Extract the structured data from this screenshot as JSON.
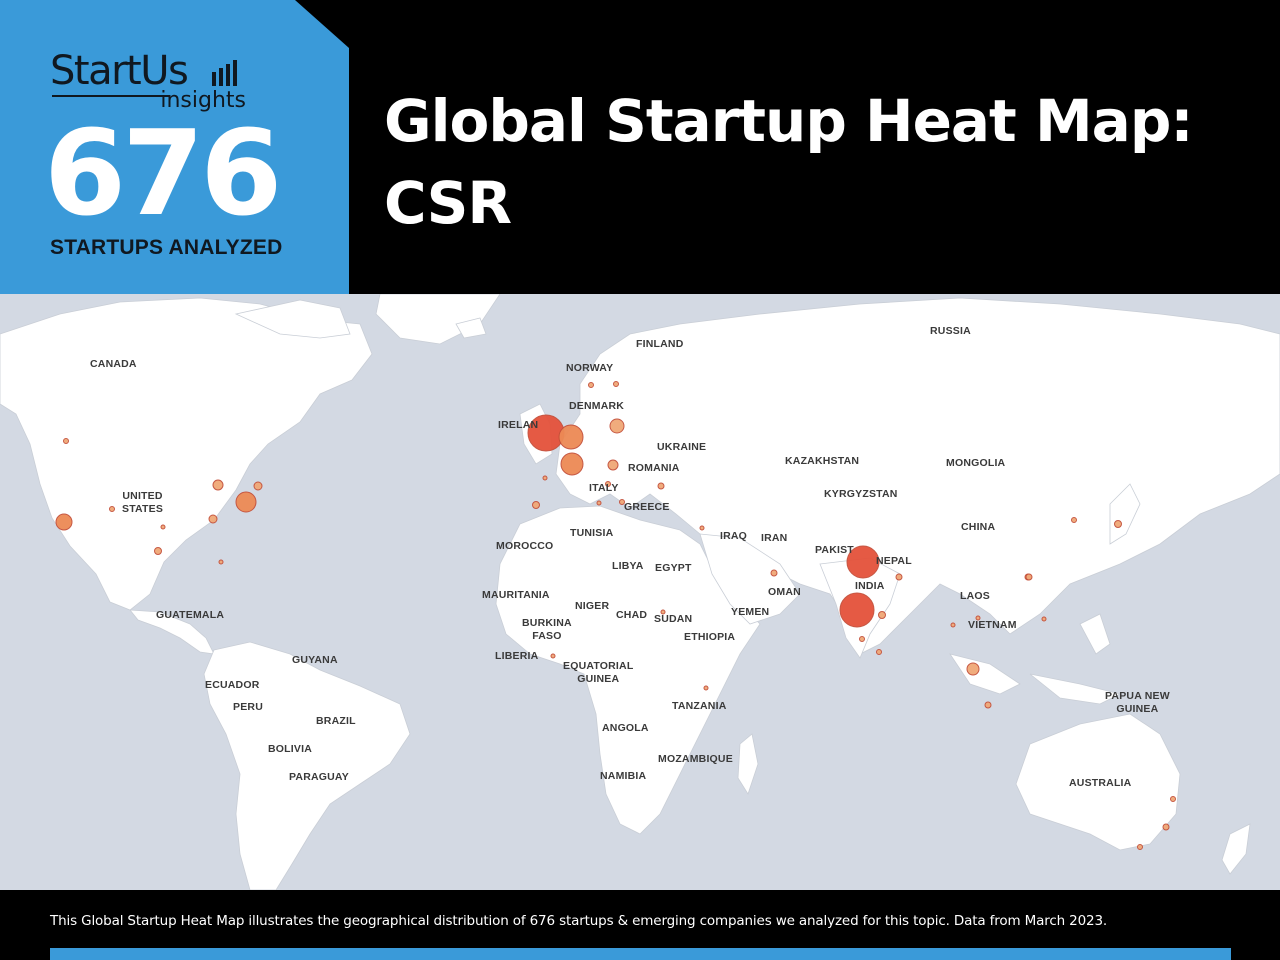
{
  "brand": {
    "name": "StartUs",
    "sub": "insights"
  },
  "badge": {
    "count": "676",
    "label": "STARTUPS ANALYZED"
  },
  "title": {
    "line1": "Global Startup Heat Map:",
    "line2": "CSR"
  },
  "colors": {
    "accent": "#3a9ad9",
    "background": "#000000",
    "ocean": "#d3d9e3",
    "land": "#ffffff",
    "hotspot_large": "#e4523b",
    "hotspot_medium": "#ed8a55",
    "hotspot_small": "#f0a877"
  },
  "map": {
    "labels": [
      {
        "id": "canada",
        "text": "CANADA"
      },
      {
        "id": "united-states",
        "text": "UNITED\nSTATES"
      },
      {
        "id": "guatemala",
        "text": "GUATEMALA"
      },
      {
        "id": "guyana",
        "text": "GUYANA"
      },
      {
        "id": "ecuador",
        "text": "ECUADOR"
      },
      {
        "id": "peru",
        "text": "PERU"
      },
      {
        "id": "brazil",
        "text": "BRAZIL"
      },
      {
        "id": "bolivia",
        "text": "BOLIVIA"
      },
      {
        "id": "paraguay",
        "text": "PARAGUAY"
      },
      {
        "id": "finland",
        "text": "FINLAND"
      },
      {
        "id": "norway",
        "text": "NORWAY"
      },
      {
        "id": "denmark",
        "text": "DENMARK"
      },
      {
        "id": "ireland",
        "text": "IRELAN"
      },
      {
        "id": "ukraine",
        "text": "UKRAINE"
      },
      {
        "id": "romania",
        "text": "ROMANIA"
      },
      {
        "id": "italy",
        "text": "ITALY"
      },
      {
        "id": "greece",
        "text": "GREECE"
      },
      {
        "id": "tunisia",
        "text": "TUNISIA"
      },
      {
        "id": "morocco",
        "text": "MOROCCO"
      },
      {
        "id": "libya",
        "text": "LIBYA"
      },
      {
        "id": "egypt",
        "text": "EGYPT"
      },
      {
        "id": "mauritania",
        "text": "MAURITANIA"
      },
      {
        "id": "niger",
        "text": "NIGER"
      },
      {
        "id": "chad",
        "text": "CHAD"
      },
      {
        "id": "sudan",
        "text": "SUDAN"
      },
      {
        "id": "burkina-faso",
        "text": "BURKINA\nFASO"
      },
      {
        "id": "liberia",
        "text": "LIBERIA"
      },
      {
        "id": "equatorial-guinea",
        "text": "EQUATORIAL\nGUINEA"
      },
      {
        "id": "ethiopia",
        "text": "ETHIOPIA"
      },
      {
        "id": "tanzania",
        "text": "TANZANIA"
      },
      {
        "id": "angola",
        "text": "ANGOLA"
      },
      {
        "id": "namibia",
        "text": "NAMIBIA"
      },
      {
        "id": "mozambique",
        "text": "MOZAMBIQUE"
      },
      {
        "id": "yemen",
        "text": "YEMEN"
      },
      {
        "id": "oman",
        "text": "OMAN"
      },
      {
        "id": "iraq",
        "text": "IRAQ"
      },
      {
        "id": "iran",
        "text": "IRAN"
      },
      {
        "id": "russia",
        "text": "RUSSIA"
      },
      {
        "id": "kazakhstan",
        "text": "KAZAKHSTAN"
      },
      {
        "id": "kyrgyzstan",
        "text": "KYRGYZSTAN"
      },
      {
        "id": "mongolia",
        "text": "MONGOLIA"
      },
      {
        "id": "china",
        "text": "CHINA"
      },
      {
        "id": "pakistan",
        "text": "PAKIST"
      },
      {
        "id": "nepal",
        "text": "NEPAL"
      },
      {
        "id": "india",
        "text": "INDIA"
      },
      {
        "id": "laos",
        "text": "LAOS"
      },
      {
        "id": "vietnam",
        "text": "VIETNAM"
      },
      {
        "id": "papua-new-guinea",
        "text": "PAPUA NEW\nGUINEA"
      },
      {
        "id": "australia",
        "text": "AUSTRALIA"
      }
    ]
  },
  "caption": "This Global Startup Heat Map illustrates the geographical distribution of 676 startups & emerging companies we analyzed for this topic. Data from March 2023."
}
